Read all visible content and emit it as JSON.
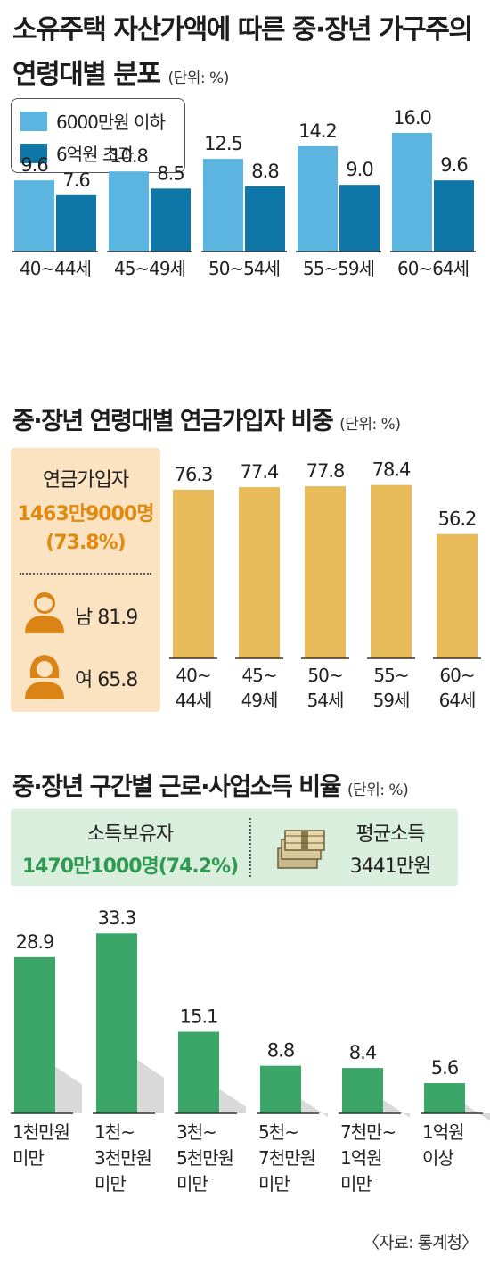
{
  "titles": {
    "chart1_line1": "소유주택 자산가액에 따른 중·장년 가구주의",
    "chart1_line2": "연령대별 분포",
    "chart1_unit": "(단위: %)",
    "chart2": "중·장년 연령대별 연금가입자 비중",
    "chart2_unit": "(단위: %)",
    "chart3": "중·장년 구간별 근로·사업소득 비율",
    "chart3_unit": "(단위: %)"
  },
  "pension_box": {
    "label": "연금가입자",
    "count": "1463만9000명",
    "pct": "(73.8%)",
    "male": "남 81.9",
    "female": "여 65.8"
  },
  "income_box": {
    "label": "소득보유자",
    "count": "1470만1000명(74.2%)",
    "avg_label": "평균소득",
    "avg_value": "3441만원"
  },
  "source": "〈자료: 통계청〉",
  "colors": {
    "light_blue": "#5cb4e0",
    "dark_blue": "#0f77a8",
    "gold": "#e8bb5a",
    "green": "#3ba667",
    "pension_bg": "#fbe3c2",
    "income_bg": "#daeedd",
    "person_icon": "#d98414"
  },
  "icons": [
    "male-person-icon",
    "female-person-icon",
    "money-stack-icon"
  ],
  "chart_data": [
    {
      "type": "bar",
      "categories": [
        "40~44세",
        "45~49세",
        "50~54세",
        "55~59세",
        "60~64세"
      ],
      "series": [
        {
          "name": "6000만원 이하",
          "values": [
            9.6,
            10.8,
            12.5,
            14.2,
            16.0
          ],
          "labels": [
            "9.6",
            "10.8",
            "12.5",
            "14.2",
            "16.0"
          ],
          "color": "#5cb4e0"
        },
        {
          "name": "6억원 초과",
          "values": [
            7.6,
            8.5,
            8.8,
            9.0,
            9.6
          ],
          "labels": [
            "7.6",
            "8.5",
            "8.8",
            "9.0",
            "9.6"
          ],
          "color": "#0f77a8"
        }
      ],
      "ylim": [
        0,
        19
      ]
    },
    {
      "type": "bar",
      "categories": [
        [
          "40~",
          "44세"
        ],
        [
          "45~",
          "49세"
        ],
        [
          "50~",
          "54세"
        ],
        [
          "55~",
          "59세"
        ],
        [
          "60~",
          "64세"
        ]
      ],
      "values": [
        76.3,
        77.4,
        77.8,
        78.4,
        56.2
      ],
      "labels": [
        "76.3",
        "77.4",
        "77.8",
        "78.4",
        "56.2"
      ],
      "color": "#e8bb5a",
      "ylim": [
        0,
        96
      ]
    },
    {
      "type": "bar",
      "categories": [
        [
          "1천만원",
          "미만"
        ],
        [
          "1천~",
          "3천만원",
          "미만"
        ],
        [
          "3천~",
          "5천만원",
          "미만"
        ],
        [
          "5천~",
          "7천만원",
          "미만"
        ],
        [
          "7천만~",
          "1억원",
          "미만"
        ],
        [
          "1억원",
          "이상"
        ]
      ],
      "values": [
        28.9,
        33.3,
        15.1,
        8.8,
        8.4,
        5.6
      ],
      "labels": [
        "28.9",
        "33.3",
        "15.1",
        "8.8",
        "8.4",
        "5.6"
      ],
      "color": "#3ba667",
      "ylim": [
        0,
        34
      ]
    }
  ]
}
